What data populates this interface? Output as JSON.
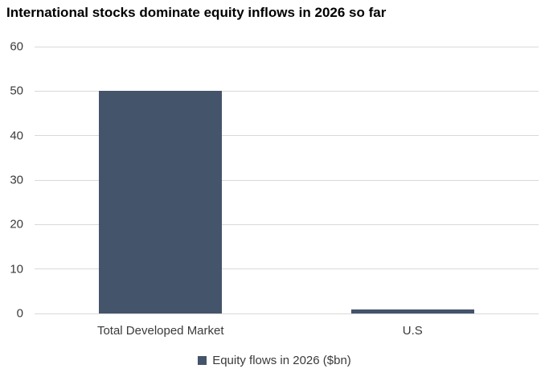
{
  "chart_data": {
    "type": "bar",
    "title": "International stocks dominate equity inflows in 2026 so far",
    "categories": [
      "Total Developed Market",
      "U.S"
    ],
    "values": [
      50,
      0.9
    ],
    "series_name": "Equity flows in 2026 ($bn)",
    "legend": "Equity flows in 2026 ($bn)",
    "xlabel": "",
    "ylabel": "",
    "ylim": [
      0,
      60
    ],
    "yticks": [
      0,
      10,
      20,
      30,
      40,
      50,
      60
    ],
    "grid": true,
    "legend_position": "bottom",
    "colors": {
      "bar": "#44546A",
      "gridline": "#D9D9D9",
      "axis_text": "#3A3A3A",
      "title_text": "#000000"
    }
  }
}
